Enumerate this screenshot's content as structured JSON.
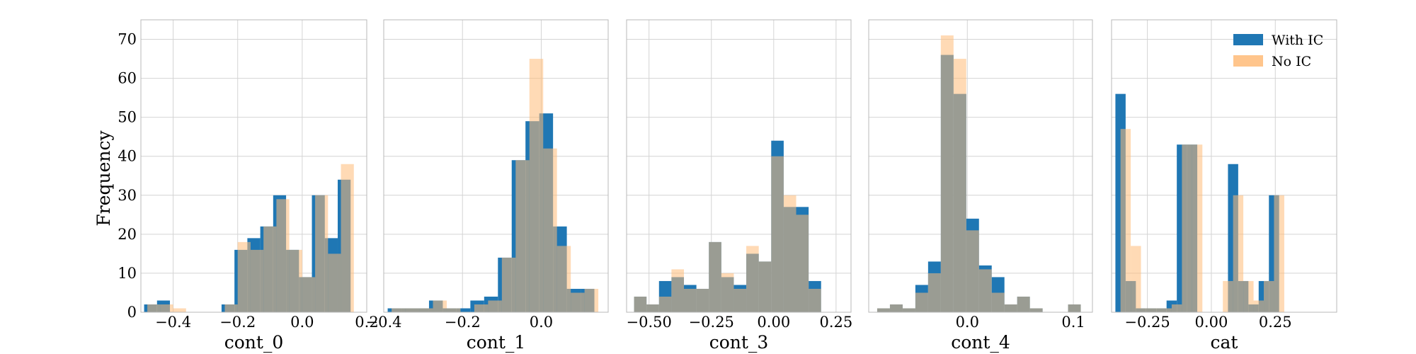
{
  "chart_data": {
    "type": "histogram",
    "ylabel": "Frequency",
    "ylim": [
      0,
      75
    ],
    "yticks": [
      0,
      10,
      20,
      30,
      40,
      50,
      60,
      70
    ],
    "grid": true,
    "legend": {
      "location": "top-right of last panel",
      "entries": [
        "With IC",
        "No IC"
      ]
    },
    "colors": {
      "with_ic": "#1f77b4",
      "no_ic": "#ffbb78",
      "overlap": "#8c7a5e"
    },
    "series_names": [
      "With IC",
      "No IC"
    ],
    "panels": [
      {
        "xlabel": "cont_0",
        "xlim": [
          -0.5,
          0.2
        ],
        "xticks": [
          {
            "v": -0.4,
            "label": "−0.4"
          },
          {
            "v": -0.2,
            "label": "−0.2"
          },
          {
            "v": 0.0,
            "label": "0.0"
          },
          {
            "v": 0.2,
            "label": "0.2"
          }
        ],
        "bins_with_ic": [
          [
            -0.49,
            -0.45,
            2
          ],
          [
            -0.45,
            -0.41,
            3
          ],
          [
            -0.41,
            -0.37,
            0
          ],
          [
            -0.37,
            -0.33,
            0
          ],
          [
            -0.33,
            -0.29,
            0
          ],
          [
            -0.29,
            -0.25,
            0
          ],
          [
            -0.25,
            -0.21,
            2
          ],
          [
            -0.21,
            -0.17,
            16
          ],
          [
            -0.17,
            -0.13,
            19
          ],
          [
            -0.13,
            -0.09,
            22
          ],
          [
            -0.09,
            -0.05,
            30
          ],
          [
            -0.05,
            -0.01,
            16
          ],
          [
            -0.01,
            0.03,
            9
          ],
          [
            0.03,
            0.07,
            30
          ],
          [
            0.07,
            0.11,
            19
          ],
          [
            0.11,
            0.15,
            34
          ]
        ],
        "bins_no_ic": [
          [
            -0.48,
            -0.44,
            2
          ],
          [
            -0.44,
            -0.4,
            2
          ],
          [
            -0.4,
            -0.36,
            1
          ],
          [
            -0.36,
            -0.32,
            0
          ],
          [
            -0.32,
            -0.28,
            0
          ],
          [
            -0.28,
            -0.24,
            0
          ],
          [
            -0.24,
            -0.2,
            2
          ],
          [
            -0.2,
            -0.16,
            18
          ],
          [
            -0.16,
            -0.12,
            16
          ],
          [
            -0.12,
            -0.08,
            22
          ],
          [
            -0.08,
            -0.04,
            29
          ],
          [
            -0.04,
            0.0,
            16
          ],
          [
            0.0,
            0.04,
            9
          ],
          [
            0.04,
            0.08,
            30
          ],
          [
            0.08,
            0.12,
            15
          ],
          [
            0.12,
            0.16,
            38
          ]
        ]
      },
      {
        "xlabel": "cont_1",
        "xlim": [
          -0.4,
          0.17
        ],
        "xticks": [
          {
            "v": -0.4,
            "label": "−0.4"
          },
          {
            "v": -0.2,
            "label": "−0.2"
          },
          {
            "v": 0.0,
            "label": "0.0"
          }
        ],
        "bins_with_ic": [
          [
            -0.39,
            -0.355,
            1
          ],
          [
            -0.355,
            -0.32,
            1
          ],
          [
            -0.32,
            -0.285,
            1
          ],
          [
            -0.285,
            -0.25,
            3
          ],
          [
            -0.25,
            -0.215,
            1
          ],
          [
            -0.215,
            -0.18,
            1
          ],
          [
            -0.18,
            -0.145,
            3
          ],
          [
            -0.145,
            -0.11,
            4
          ],
          [
            -0.11,
            -0.075,
            14
          ],
          [
            -0.075,
            -0.04,
            39
          ],
          [
            -0.04,
            -0.005,
            49
          ],
          [
            -0.005,
            0.03,
            51
          ],
          [
            0.03,
            0.065,
            22
          ],
          [
            0.065,
            0.1,
            6
          ],
          [
            0.1,
            0.135,
            6
          ]
        ],
        "bins_no_ic": [
          [
            -0.38,
            -0.345,
            1
          ],
          [
            -0.345,
            -0.31,
            1
          ],
          [
            -0.31,
            -0.275,
            1
          ],
          [
            -0.275,
            -0.24,
            3
          ],
          [
            -0.24,
            -0.205,
            1
          ],
          [
            -0.205,
            -0.17,
            0
          ],
          [
            -0.17,
            -0.135,
            2
          ],
          [
            -0.135,
            -0.1,
            3
          ],
          [
            -0.1,
            -0.065,
            14
          ],
          [
            -0.065,
            -0.03,
            39
          ],
          [
            -0.03,
            0.005,
            65
          ],
          [
            0.005,
            0.04,
            42
          ],
          [
            0.04,
            0.075,
            17
          ],
          [
            0.075,
            0.11,
            5
          ],
          [
            0.11,
            0.145,
            6
          ]
        ]
      },
      {
        "xlabel": "cont_3",
        "xlim": [
          -0.59,
          0.31
        ],
        "xticks": [
          {
            "v": -0.5,
            "label": "−0.50"
          },
          {
            "v": -0.25,
            "label": "−0.25"
          },
          {
            "v": 0.0,
            "label": "0.00"
          },
          {
            "v": 0.25,
            "label": "0.25"
          }
        ],
        "bins_with_ic": [
          [
            -0.56,
            -0.51,
            4
          ],
          [
            -0.51,
            -0.46,
            2
          ],
          [
            -0.46,
            -0.41,
            8
          ],
          [
            -0.41,
            -0.36,
            9
          ],
          [
            -0.36,
            -0.31,
            7
          ],
          [
            -0.31,
            -0.26,
            6
          ],
          [
            -0.26,
            -0.21,
            18
          ],
          [
            -0.21,
            -0.16,
            9
          ],
          [
            -0.16,
            -0.11,
            7
          ],
          [
            -0.11,
            -0.06,
            15
          ],
          [
            -0.06,
            -0.01,
            13
          ],
          [
            -0.01,
            0.04,
            44
          ],
          [
            0.04,
            0.09,
            27
          ],
          [
            0.09,
            0.14,
            27
          ],
          [
            0.14,
            0.19,
            8
          ],
          [
            0.19,
            0.24,
            0
          ]
        ],
        "bins_no_ic": [
          [
            -0.56,
            -0.51,
            4
          ],
          [
            -0.51,
            -0.46,
            2
          ],
          [
            -0.46,
            -0.41,
            4
          ],
          [
            -0.41,
            -0.36,
            11
          ],
          [
            -0.36,
            -0.31,
            6
          ],
          [
            -0.31,
            -0.26,
            6
          ],
          [
            -0.26,
            -0.21,
            18
          ],
          [
            -0.21,
            -0.16,
            10
          ],
          [
            -0.16,
            -0.11,
            6
          ],
          [
            -0.11,
            -0.06,
            17
          ],
          [
            -0.06,
            -0.01,
            13
          ],
          [
            -0.01,
            0.04,
            40
          ],
          [
            0.04,
            0.09,
            30
          ],
          [
            0.09,
            0.14,
            25
          ],
          [
            0.14,
            0.19,
            6
          ],
          [
            0.19,
            0.24,
            0
          ]
        ]
      },
      {
        "xlabel": "cont_4",
        "xlim": [
          -0.093,
          0.118
        ],
        "xticks": [
          {
            "v": 0.0,
            "label": "0.0"
          },
          {
            "v": 0.1,
            "label": "0.1"
          }
        ],
        "bins_with_ic": [
          [
            -0.085,
            -0.073,
            1
          ],
          [
            -0.073,
            -0.061,
            2
          ],
          [
            -0.061,
            -0.049,
            1
          ],
          [
            -0.049,
            -0.037,
            7
          ],
          [
            -0.037,
            -0.025,
            13
          ],
          [
            -0.025,
            -0.013,
            66
          ],
          [
            -0.013,
            -0.001,
            56
          ],
          [
            -0.001,
            0.011,
            24
          ],
          [
            0.011,
            0.023,
            12
          ],
          [
            0.023,
            0.035,
            9
          ],
          [
            0.035,
            0.047,
            2
          ],
          [
            0.047,
            0.059,
            4
          ],
          [
            0.059,
            0.071,
            1
          ],
          [
            0.071,
            0.083,
            0
          ],
          [
            0.083,
            0.095,
            0
          ],
          [
            0.095,
            0.107,
            2
          ]
        ],
        "bins_no_ic": [
          [
            -0.085,
            -0.073,
            1
          ],
          [
            -0.073,
            -0.061,
            2
          ],
          [
            -0.061,
            -0.049,
            1
          ],
          [
            -0.049,
            -0.037,
            5
          ],
          [
            -0.037,
            -0.025,
            10
          ],
          [
            -0.025,
            -0.013,
            71
          ],
          [
            -0.013,
            -0.001,
            65
          ],
          [
            -0.001,
            0.011,
            21
          ],
          [
            0.011,
            0.023,
            11
          ],
          [
            0.023,
            0.035,
            5
          ],
          [
            0.035,
            0.047,
            2
          ],
          [
            0.047,
            0.059,
            4
          ],
          [
            0.059,
            0.071,
            1
          ],
          [
            0.071,
            0.083,
            0
          ],
          [
            0.083,
            0.095,
            0
          ],
          [
            0.095,
            0.107,
            2
          ]
        ]
      },
      {
        "xlabel": "cat",
        "xlim": [
          -0.39,
          0.49
        ],
        "xticks": [
          {
            "v": -0.25,
            "label": "−0.25"
          },
          {
            "v": 0.0,
            "label": "0.00"
          },
          {
            "v": 0.25,
            "label": "0.25"
          }
        ],
        "bins_with_ic": [
          [
            -0.375,
            -0.335,
            56
          ],
          [
            -0.335,
            -0.295,
            8
          ],
          [
            -0.295,
            -0.255,
            1
          ],
          [
            -0.255,
            -0.215,
            1
          ],
          [
            -0.215,
            -0.175,
            1
          ],
          [
            -0.175,
            -0.135,
            3
          ],
          [
            -0.135,
            -0.095,
            43
          ],
          [
            -0.095,
            -0.055,
            43
          ],
          [
            -0.055,
            -0.015,
            0
          ],
          [
            -0.015,
            0.025,
            0
          ],
          [
            0.025,
            0.065,
            0
          ],
          [
            0.065,
            0.105,
            38
          ],
          [
            0.105,
            0.145,
            8
          ],
          [
            0.145,
            0.185,
            2
          ],
          [
            0.185,
            0.225,
            8
          ],
          [
            0.225,
            0.265,
            30
          ]
        ],
        "bins_no_ic": [
          [
            -0.355,
            -0.315,
            47
          ],
          [
            -0.315,
            -0.275,
            17
          ],
          [
            -0.275,
            -0.235,
            1
          ],
          [
            -0.235,
            -0.195,
            1
          ],
          [
            -0.195,
            -0.155,
            1
          ],
          [
            -0.155,
            -0.115,
            2
          ],
          [
            -0.115,
            -0.075,
            43
          ],
          [
            -0.075,
            -0.035,
            43
          ],
          [
            -0.035,
            0.005,
            0
          ],
          [
            0.005,
            0.045,
            0
          ],
          [
            0.045,
            0.085,
            8
          ],
          [
            0.085,
            0.125,
            30
          ],
          [
            0.125,
            0.165,
            8
          ],
          [
            0.165,
            0.205,
            3
          ],
          [
            0.205,
            0.245,
            8
          ],
          [
            0.245,
            0.285,
            30
          ]
        ]
      }
    ]
  }
}
